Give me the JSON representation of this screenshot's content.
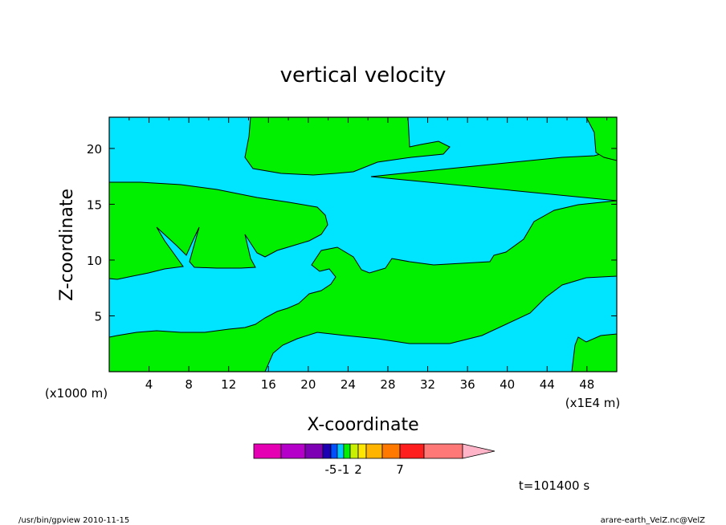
{
  "chart_data": {
    "type": "contour",
    "title": "vertical velocity",
    "xlabel": "X-coordinate",
    "ylabel": "Z-coordinate",
    "x_scale_label": "(x1E4 m)",
    "y_scale_label": "(x1000 m)",
    "x_ticks": [
      "4",
      "8",
      "12",
      "16",
      "20",
      "24",
      "28",
      "32",
      "36",
      "40",
      "44",
      "48"
    ],
    "y_ticks": [
      "5",
      "10",
      "15",
      "20"
    ],
    "xlim": [
      0,
      51
    ],
    "ylim": [
      0,
      22.8
    ],
    "fill_colors": {
      "negative": "#00e5ff",
      "positive": "#00f000"
    },
    "colorbar": {
      "colors": [
        "#e600b4",
        "#b400c8",
        "#7d00b4",
        "#1e00b4",
        "#0050ff",
        "#00c8ff",
        "#00f000",
        "#c8f000",
        "#ffe600",
        "#ffb400",
        "#ff7800",
        "#ff1e1e",
        "#ff7878"
      ],
      "extend_color": "#ffb4c8",
      "labels": [
        {
          "text": "-5",
          "index": 3
        },
        {
          "text": "-1",
          "index": 5
        },
        {
          "text": "2",
          "index": 7
        },
        {
          "text": "7",
          "index": 10
        }
      ]
    },
    "time_label": "t=101400 s"
  },
  "footer": {
    "left": "/usr/bin/gpview  2010-11-15",
    "right": "arare-earth_VelZ.nc@VelZ"
  }
}
